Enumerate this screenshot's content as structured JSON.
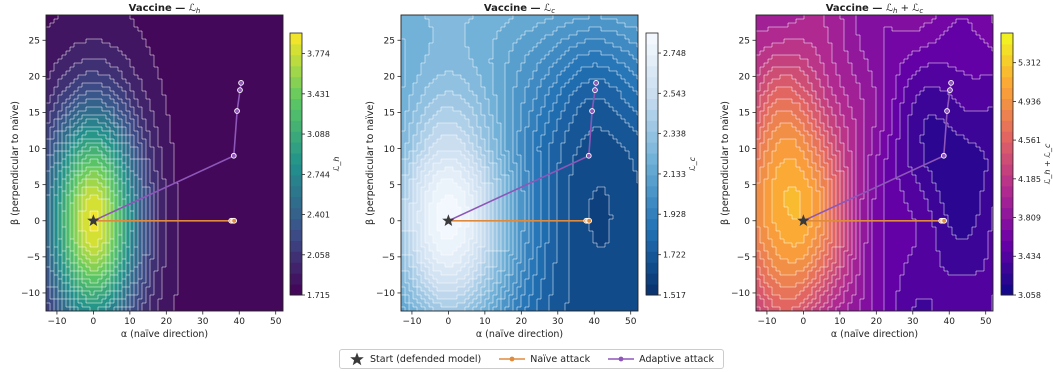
{
  "chart_data": [
    {
      "type": "contour",
      "title": "Vaccine — ℒ_h",
      "title_main": "Vaccine —",
      "title_math": "ℒ",
      "title_sub": "h",
      "xlabel": "α  (naïve direction)",
      "ylabel": "β  (perpendicular to naïve)",
      "xlim": [
        -13,
        52
      ],
      "ylim": [
        -12.5,
        28.5
      ],
      "xticks": [
        -10,
        0,
        10,
        20,
        30,
        40,
        50
      ],
      "yticks": [
        -10,
        -5,
        0,
        5,
        10,
        15,
        20,
        25
      ],
      "colormap": [
        "#440154",
        "#3b528b",
        "#21918c",
        "#5ec962",
        "#fde725"
      ],
      "colorbar_label": "ℒ_h",
      "colorbar_ticks": [
        "1.715",
        "2.058",
        "2.401",
        "2.744",
        "3.088",
        "3.431",
        "3.774"
      ],
      "colorbar_range": [
        1.715,
        3.95
      ],
      "field": "h"
    },
    {
      "type": "contour",
      "title": "Vaccine — ℒ_c",
      "title_main": "Vaccine —",
      "title_math": "ℒ",
      "title_sub": "c",
      "xlabel": "α  (naïve direction)",
      "ylabel": "β  (perpendicular to naïve)",
      "xlim": [
        -13,
        52
      ],
      "ylim": [
        -12.5,
        28.5
      ],
      "xticks": [
        -10,
        0,
        10,
        20,
        30,
        40,
        50
      ],
      "yticks": [
        -10,
        -5,
        0,
        5,
        10,
        15,
        20,
        25
      ],
      "colormap": [
        "#08306b",
        "#2171b5",
        "#6baed6",
        "#c6dbef",
        "#f7fbff"
      ],
      "colorbar_label": "ℒ_c",
      "colorbar_ticks": [
        "1.517",
        "1.722",
        "1.928",
        "2.133",
        "2.338",
        "2.543",
        "2.748"
      ],
      "colorbar_range": [
        1.517,
        2.85
      ],
      "field": "c"
    },
    {
      "type": "contour",
      "title": "Vaccine — ℒ_h + ℒ_c",
      "title_main": "Vaccine —",
      "title_math": "ℒ",
      "title_sub": "h",
      "title_extra": " + ℒ",
      "title_sub2": "c",
      "xlabel": "α  (naïve direction)",
      "ylabel": "β  (perpendicular to naïve)",
      "xlim": [
        -13,
        52
      ],
      "ylim": [
        -12.5,
        28.5
      ],
      "xticks": [
        -10,
        0,
        10,
        20,
        30,
        40,
        50
      ],
      "yticks": [
        -10,
        -5,
        0,
        5,
        10,
        15,
        20,
        25
      ],
      "colormap": [
        "#0d0887",
        "#6a00a8",
        "#b12a90",
        "#e16462",
        "#fca636",
        "#f0f921"
      ],
      "colorbar_label": "ℒ_h + ℒ_c",
      "colorbar_ticks": [
        "3.058",
        "3.434",
        "3.809",
        "4.185",
        "4.561",
        "4.936",
        "5.312"
      ],
      "colorbar_range": [
        3.058,
        5.6
      ],
      "field": "sum"
    }
  ],
  "trajectories": {
    "start": [
      0,
      0
    ],
    "naive": [
      [
        0,
        0
      ],
      [
        37.8,
        0
      ],
      [
        38.3,
        0
      ],
      [
        38.6,
        0
      ]
    ],
    "adaptive": [
      [
        0,
        0
      ],
      [
        38.5,
        9
      ],
      [
        39.4,
        15.2
      ],
      [
        40.2,
        18.1
      ],
      [
        40.5,
        19.1
      ]
    ]
  },
  "legend": {
    "start_label": "Start (defended model)",
    "naive_label": "Naïve attack",
    "adaptive_label": "Adaptive attack"
  },
  "colors": {
    "naive": "#e08a3c",
    "adaptive": "#8d56b8",
    "start": "#3a3a3a",
    "contour_line": "#ffffff"
  }
}
